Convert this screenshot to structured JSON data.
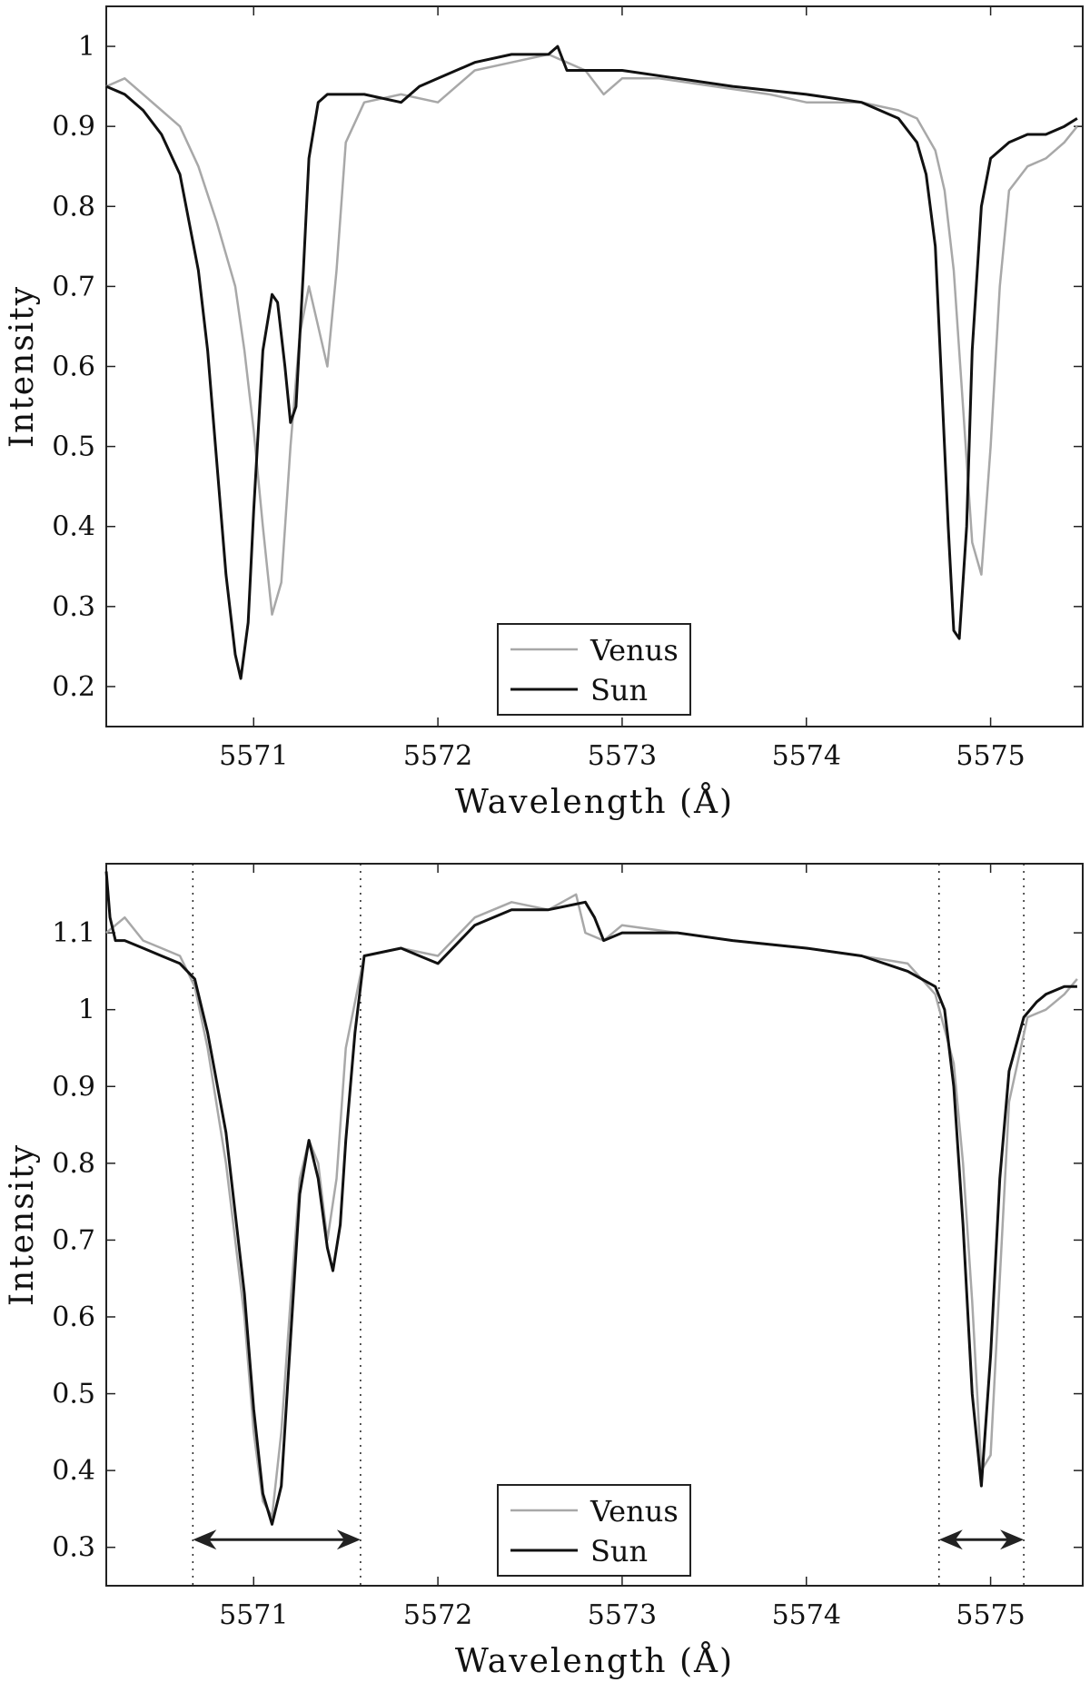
{
  "colors": {
    "Venus": "#a8a8a8",
    "Sun": "#111111",
    "axes": "#222222"
  },
  "chart_data": [
    {
      "type": "line",
      "xlabel": "Wavelength (Å)",
      "ylabel": "Intensity",
      "xlim": [
        5570.2,
        5575.5
      ],
      "ylim": [
        0.15,
        1.05
      ],
      "xticks": [
        5571,
        5572,
        5573,
        5574,
        5575
      ],
      "xtick_labels": [
        "5571",
        "5572",
        "5573",
        "5574",
        "5575"
      ],
      "yticks": [
        0.2,
        0.3,
        0.4,
        0.5,
        0.6,
        0.7,
        0.8,
        0.9,
        1
      ],
      "ytick_labels": [
        "0.2",
        "0.3",
        "0.4",
        "0.5",
        "0.6",
        "0.7",
        "0.8",
        "0.9",
        "1"
      ],
      "legend": {
        "position": "bottom-center",
        "entries": [
          "Venus",
          "Sun"
        ]
      },
      "grid": false,
      "series": [
        {
          "name": "Venus",
          "x": [
            5570.2,
            5570.3,
            5570.4,
            5570.5,
            5570.6,
            5570.7,
            5570.8,
            5570.9,
            5570.95,
            5571.0,
            5571.05,
            5571.1,
            5571.15,
            5571.2,
            5571.25,
            5571.3,
            5571.35,
            5571.4,
            5571.45,
            5571.5,
            5571.6,
            5571.8,
            5572.0,
            5572.2,
            5572.4,
            5572.6,
            5572.7,
            5572.8,
            5572.9,
            5573.0,
            5573.2,
            5573.5,
            5573.8,
            5574.0,
            5574.3,
            5574.5,
            5574.6,
            5574.7,
            5574.75,
            5574.8,
            5574.85,
            5574.9,
            5574.95,
            5575.0,
            5575.05,
            5575.1,
            5575.2,
            5575.3,
            5575.4,
            5575.47
          ],
          "y": [
            0.95,
            0.96,
            0.94,
            0.92,
            0.9,
            0.85,
            0.78,
            0.7,
            0.62,
            0.52,
            0.4,
            0.29,
            0.33,
            0.5,
            0.64,
            0.7,
            0.65,
            0.6,
            0.72,
            0.88,
            0.93,
            0.94,
            0.93,
            0.97,
            0.98,
            0.99,
            0.98,
            0.97,
            0.94,
            0.96,
            0.96,
            0.95,
            0.94,
            0.93,
            0.93,
            0.92,
            0.91,
            0.87,
            0.82,
            0.72,
            0.55,
            0.38,
            0.34,
            0.5,
            0.7,
            0.82,
            0.85,
            0.86,
            0.88,
            0.9
          ]
        },
        {
          "name": "Sun",
          "x": [
            5570.2,
            5570.3,
            5570.4,
            5570.5,
            5570.6,
            5570.7,
            5570.75,
            5570.8,
            5570.85,
            5570.9,
            5570.93,
            5570.97,
            5571.0,
            5571.05,
            5571.1,
            5571.13,
            5571.17,
            5571.2,
            5571.23,
            5571.27,
            5571.3,
            5571.35,
            5571.4,
            5571.5,
            5571.6,
            5571.8,
            5571.9,
            5572.0,
            5572.2,
            5572.4,
            5572.6,
            5572.65,
            5572.7,
            5572.8,
            5573.0,
            5573.3,
            5573.6,
            5574.0,
            5574.3,
            5574.5,
            5574.6,
            5574.65,
            5574.7,
            5574.73,
            5574.77,
            5574.8,
            5574.83,
            5574.87,
            5574.9,
            5574.95,
            5575.0,
            5575.1,
            5575.2,
            5575.3,
            5575.4,
            5575.47
          ],
          "y": [
            0.95,
            0.94,
            0.92,
            0.89,
            0.84,
            0.72,
            0.62,
            0.48,
            0.34,
            0.24,
            0.21,
            0.28,
            0.42,
            0.62,
            0.69,
            0.68,
            0.6,
            0.53,
            0.55,
            0.72,
            0.86,
            0.93,
            0.94,
            0.94,
            0.94,
            0.93,
            0.95,
            0.96,
            0.98,
            0.99,
            0.99,
            1.0,
            0.97,
            0.97,
            0.97,
            0.96,
            0.95,
            0.94,
            0.93,
            0.91,
            0.88,
            0.84,
            0.75,
            0.6,
            0.4,
            0.27,
            0.26,
            0.4,
            0.62,
            0.8,
            0.86,
            0.88,
            0.89,
            0.89,
            0.9,
            0.91
          ]
        }
      ]
    },
    {
      "type": "line",
      "xlabel": "Wavelength (Å)",
      "ylabel": "Intensity",
      "xlim": [
        5570.2,
        5575.5
      ],
      "ylim": [
        0.25,
        1.19
      ],
      "xticks": [
        5571,
        5572,
        5573,
        5574,
        5575
      ],
      "xtick_labels": [
        "5571",
        "5572",
        "5573",
        "5574",
        "5575"
      ],
      "yticks": [
        0.3,
        0.4,
        0.5,
        0.6,
        0.7,
        0.8,
        0.9,
        1,
        1.1
      ],
      "ytick_labels": [
        "0.3",
        "0.4",
        "0.5",
        "0.6",
        "0.7",
        "0.8",
        "0.9",
        "1",
        "1.1"
      ],
      "legend": {
        "position": "bottom-center",
        "entries": [
          "Venus",
          "Sun"
        ]
      },
      "grid": false,
      "vlines": [
        5570.67,
        5571.58,
        5574.72,
        5575.18
      ],
      "arrows": [
        {
          "from": 5570.67,
          "to": 5571.58,
          "y": 0.31
        },
        {
          "from": 5574.72,
          "to": 5575.18,
          "y": 0.31
        }
      ],
      "series": [
        {
          "name": "Venus",
          "x": [
            5570.2,
            5570.3,
            5570.4,
            5570.5,
            5570.6,
            5570.68,
            5570.75,
            5570.85,
            5570.95,
            5571.0,
            5571.05,
            5571.1,
            5571.15,
            5571.2,
            5571.25,
            5571.3,
            5571.35,
            5571.4,
            5571.45,
            5571.5,
            5571.6,
            5571.8,
            5572.0,
            5572.2,
            5572.4,
            5572.6,
            5572.75,
            5572.8,
            5572.9,
            5573.0,
            5573.3,
            5573.6,
            5574.0,
            5574.3,
            5574.55,
            5574.7,
            5574.8,
            5574.85,
            5574.9,
            5574.95,
            5575.0,
            5575.05,
            5575.1,
            5575.2,
            5575.3,
            5575.4,
            5575.47
          ],
          "y": [
            1.1,
            1.12,
            1.09,
            1.08,
            1.07,
            1.03,
            0.95,
            0.8,
            0.6,
            0.45,
            0.36,
            0.34,
            0.45,
            0.62,
            0.78,
            0.83,
            0.8,
            0.7,
            0.78,
            0.95,
            1.07,
            1.08,
            1.07,
            1.12,
            1.14,
            1.13,
            1.15,
            1.1,
            1.09,
            1.11,
            1.1,
            1.09,
            1.08,
            1.07,
            1.06,
            1.02,
            0.93,
            0.8,
            0.62,
            0.4,
            0.42,
            0.65,
            0.88,
            0.99,
            1.0,
            1.02,
            1.04
          ]
        },
        {
          "name": "Sun",
          "x": [
            5570.2,
            5570.22,
            5570.25,
            5570.3,
            5570.4,
            5570.5,
            5570.6,
            5570.68,
            5570.75,
            5570.85,
            5570.95,
            5571.0,
            5571.05,
            5571.1,
            5571.15,
            5571.2,
            5571.25,
            5571.3,
            5571.35,
            5571.4,
            5571.43,
            5571.47,
            5571.5,
            5571.55,
            5571.6,
            5571.8,
            5571.9,
            5572.0,
            5572.2,
            5572.4,
            5572.6,
            5572.8,
            5572.85,
            5572.9,
            5573.0,
            5573.3,
            5573.6,
            5574.0,
            5574.3,
            5574.55,
            5574.7,
            5574.75,
            5574.8,
            5574.85,
            5574.9,
            5574.95,
            5575.0,
            5575.05,
            5575.1,
            5575.18,
            5575.25,
            5575.3,
            5575.4,
            5575.47
          ],
          "y": [
            1.18,
            1.12,
            1.09,
            1.09,
            1.08,
            1.07,
            1.06,
            1.04,
            0.97,
            0.84,
            0.63,
            0.48,
            0.37,
            0.33,
            0.38,
            0.57,
            0.76,
            0.83,
            0.78,
            0.69,
            0.66,
            0.72,
            0.83,
            0.97,
            1.07,
            1.08,
            1.07,
            1.06,
            1.11,
            1.13,
            1.13,
            1.14,
            1.12,
            1.09,
            1.1,
            1.1,
            1.09,
            1.08,
            1.07,
            1.05,
            1.03,
            1.0,
            0.9,
            0.72,
            0.5,
            0.38,
            0.55,
            0.78,
            0.92,
            0.99,
            1.01,
            1.02,
            1.03,
            1.03
          ]
        }
      ]
    }
  ]
}
